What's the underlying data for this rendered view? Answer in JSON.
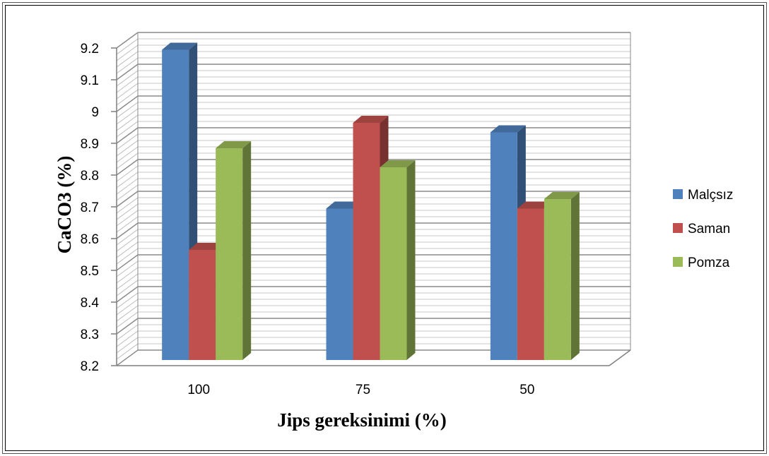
{
  "chart_data": {
    "type": "bar",
    "title": "",
    "xlabel": "Jips gereksinimi (%)",
    "ylabel": "CaCO3 (%)",
    "categories": [
      "100",
      "75",
      "50"
    ],
    "series": [
      {
        "name": "Malçsız",
        "color": "#4F81BD",
        "values": [
          9.19,
          8.69,
          8.93
        ]
      },
      {
        "name": "Saman",
        "color": "#C0504D",
        "values": [
          8.56,
          8.96,
          8.69
        ]
      },
      {
        "name": "Pomza",
        "color": "#9BBB59",
        "values": [
          8.88,
          8.82,
          8.72
        ]
      }
    ],
    "ylim": [
      8.2,
      9.2
    ],
    "yticks": [
      "8.2",
      "8.3",
      "8.4",
      "8.5",
      "8.6",
      "8.7",
      "8.8",
      "8.9",
      "9",
      "9.1",
      "9.2"
    ],
    "grid": true,
    "legend_position": "right",
    "style": "3d-clustered-column"
  }
}
